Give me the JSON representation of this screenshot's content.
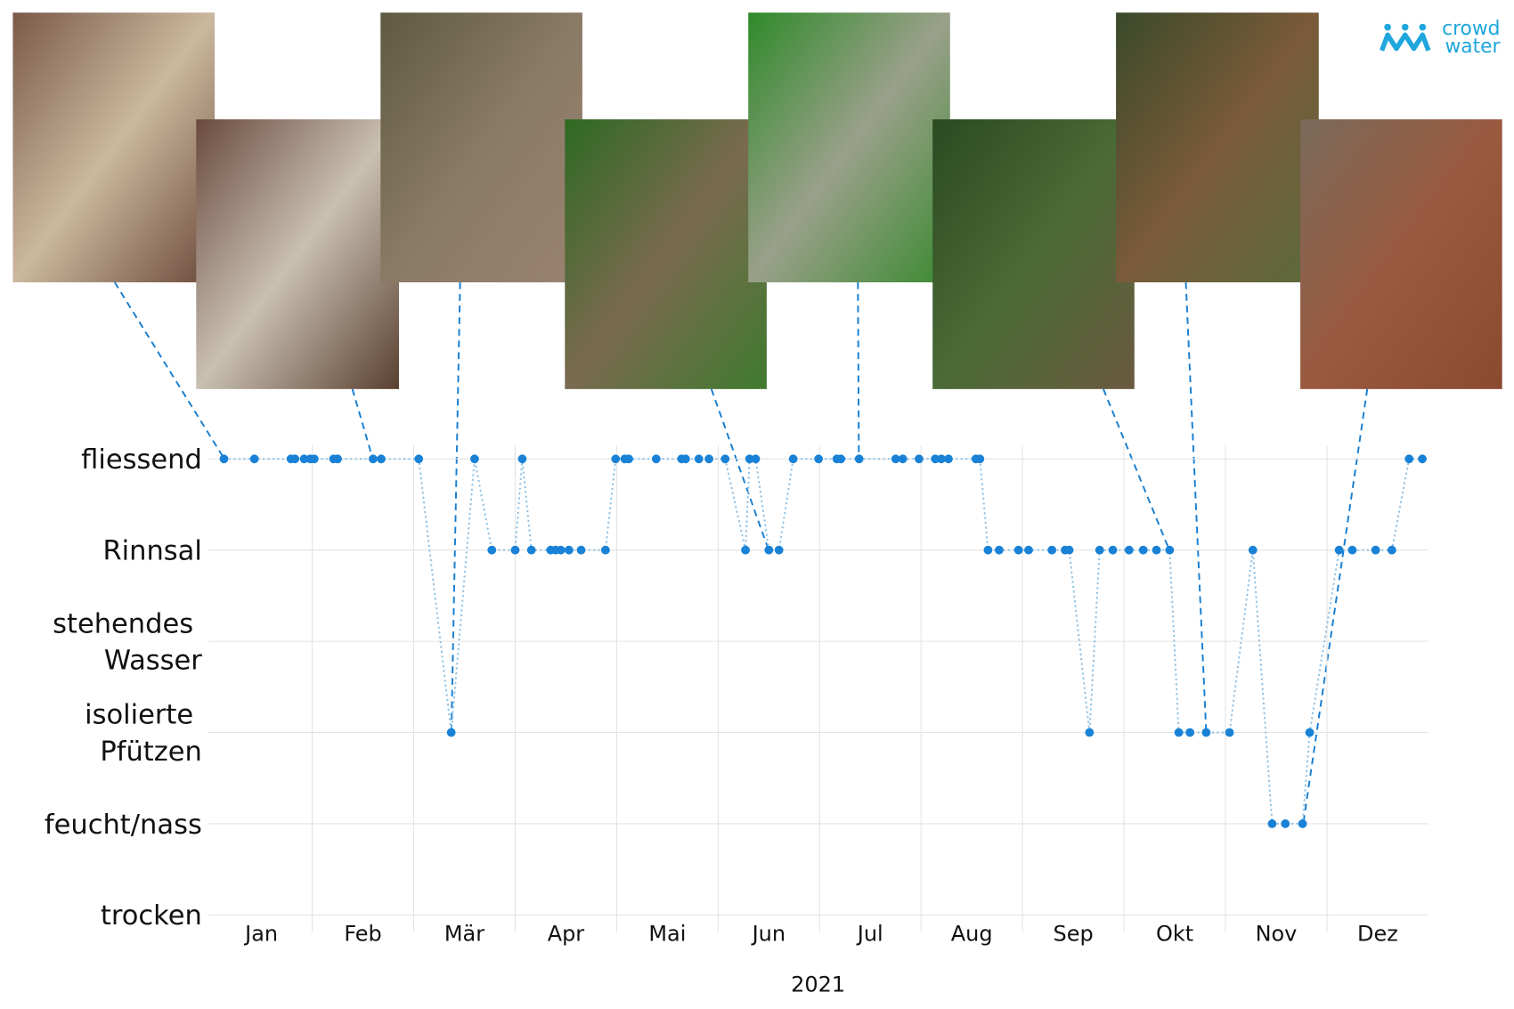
{
  "logo": {
    "line1": "crowd",
    "line2": "water"
  },
  "chart_data": {
    "type": "line",
    "x_label": "2021",
    "xlim": [
      1,
      13
    ],
    "xticks": [
      {
        "value": 1.5,
        "label": "Jan"
      },
      {
        "value": 2.5,
        "label": "Feb"
      },
      {
        "value": 3.5,
        "label": "Mär"
      },
      {
        "value": 4.5,
        "label": "Apr"
      },
      {
        "value": 5.5,
        "label": "Mai"
      },
      {
        "value": 6.5,
        "label": "Jun"
      },
      {
        "value": 7.5,
        "label": "Jul"
      },
      {
        "value": 8.5,
        "label": "Aug"
      },
      {
        "value": 9.5,
        "label": "Sep"
      },
      {
        "value": 10.5,
        "label": "Okt"
      },
      {
        "value": 11.5,
        "label": "Nov"
      },
      {
        "value": 12.5,
        "label": "Dez"
      }
    ],
    "xgrid": [
      2,
      3,
      4,
      5,
      6,
      7,
      8,
      9,
      10,
      11,
      12
    ],
    "ylim": [
      0,
      5
    ],
    "yticks": [
      {
        "value": 0,
        "label": "trocken"
      },
      {
        "value": 1,
        "label": "feucht/nass"
      },
      {
        "value": 2,
        "label": "isolierte Pfützen"
      },
      {
        "value": 3,
        "label": "stehendes Wasser"
      },
      {
        "value": 4,
        "label": "Rinnsal"
      },
      {
        "value": 5,
        "label": "fliessend"
      }
    ],
    "grid": true,
    "series": [
      {
        "color": "#1a82d6",
        "x": [
          1.13,
          1.43,
          1.79,
          1.83,
          1.92,
          1.98,
          2.02,
          2.21,
          2.25,
          2.6,
          2.68,
          3.05,
          3.37,
          3.6,
          3.77,
          4.0,
          4.07,
          4.16,
          4.35,
          4.4,
          4.45,
          4.53,
          4.65,
          4.89,
          4.99,
          5.08,
          5.12,
          5.39,
          5.64,
          5.68,
          5.81,
          5.91,
          6.07,
          6.27,
          6.31,
          6.37,
          6.5,
          6.6,
          6.74,
          6.99,
          7.17,
          7.21,
          7.39,
          7.75,
          7.82,
          7.98,
          8.14,
          8.2,
          8.27,
          8.54,
          8.58,
          8.66,
          8.77,
          8.96,
          9.06,
          9.29,
          9.42,
          9.46,
          9.66,
          9.76,
          9.89,
          10.05,
          10.19,
          10.32,
          10.45,
          10.54,
          10.65,
          10.81,
          11.04,
          11.27,
          11.46,
          11.59,
          11.76,
          11.83,
          12.12,
          12.25,
          12.48,
          12.64,
          12.81,
          12.94
        ],
        "values": [
          5,
          5,
          5,
          5,
          5,
          5,
          5,
          5,
          5,
          5,
          5,
          5,
          2,
          5,
          4,
          4,
          5,
          4,
          4,
          4,
          4,
          4,
          4,
          4,
          5,
          5,
          5,
          5,
          5,
          5,
          5,
          5,
          5,
          4,
          5,
          5,
          4,
          4,
          5,
          5,
          5,
          5,
          5,
          5,
          5,
          5,
          5,
          5,
          5,
          5,
          5,
          4,
          4,
          4,
          4,
          4,
          4,
          4,
          2,
          4,
          4,
          4,
          4,
          4,
          4,
          2,
          2,
          2,
          2,
          4,
          1,
          1,
          1,
          2,
          4,
          4,
          4,
          4,
          5,
          5
        ]
      }
    ]
  }
}
